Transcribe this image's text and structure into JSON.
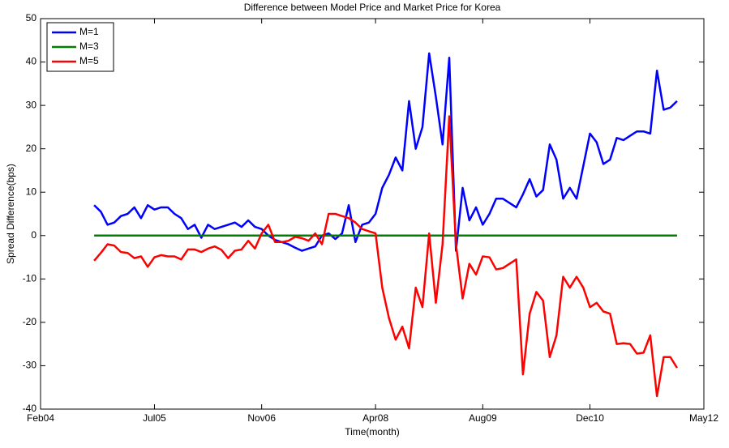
{
  "chart_data": {
    "type": "line",
    "title": "Difference between Model Price and Market Price for Korea",
    "x_label": "Time(month)",
    "y_label": "Spread Difference(bps)",
    "xlim": [
      0,
      99
    ],
    "xticks": [
      {
        "value": 0,
        "label": "Feb04"
      },
      {
        "value": 17,
        "label": "Jul05"
      },
      {
        "value": 33,
        "label": "Nov06"
      },
      {
        "value": 50,
        "label": "Apr08"
      },
      {
        "value": 66,
        "label": "Aug09"
      },
      {
        "value": 82,
        "label": "Dec10"
      },
      {
        "value": 99,
        "label": "May12"
      }
    ],
    "ylim": [
      -40,
      50
    ],
    "yticks": [
      -40,
      -30,
      -20,
      -10,
      0,
      10,
      20,
      30,
      40,
      50
    ],
    "legend": "upper left",
    "x": [
      8,
      9,
      10,
      11,
      12,
      13,
      14,
      15,
      16,
      17,
      18,
      19,
      20,
      21,
      22,
      23,
      24,
      25,
      26,
      27,
      28,
      29,
      30,
      31,
      32,
      33,
      34,
      35,
      36,
      37,
      38,
      39,
      40,
      41,
      42,
      43,
      44,
      45,
      46,
      47,
      48,
      49,
      50,
      51,
      52,
      53,
      54,
      55,
      56,
      57,
      58,
      59,
      60,
      61,
      62,
      63,
      64,
      65,
      66,
      67,
      68,
      69,
      70,
      71,
      72,
      73,
      74,
      75,
      76,
      77,
      78,
      79,
      80,
      81,
      82,
      83,
      84,
      85,
      86,
      87,
      88,
      89,
      90,
      91,
      92,
      93,
      94,
      95
    ],
    "series": [
      {
        "name": "M=1",
        "color": "#0000ff",
        "values": [
          7,
          5.5,
          2.5,
          3,
          4.5,
          5,
          6.5,
          4,
          7,
          6,
          6.5,
          6.5,
          5,
          4,
          1.5,
          2.5,
          -0.5,
          2.5,
          1.5,
          2,
          2.5,
          3,
          2,
          3.5,
          2,
          1.5,
          0,
          -1,
          -1.5,
          -2,
          -2.8,
          -3.5,
          -3,
          -2.5,
          0,
          0.5,
          -0.8,
          0.5,
          7,
          -1.5,
          2.5,
          3,
          5,
          11,
          14,
          18,
          15,
          31,
          20,
          25,
          42,
          32,
          21,
          41,
          -3.5,
          11,
          3.5,
          6.5,
          2.5,
          5,
          8.5,
          8.5,
          7.5,
          6.5,
          9.5,
          13,
          9,
          10.5,
          21,
          17.5,
          8.5,
          11,
          8.5,
          16,
          23.5,
          21.5,
          16.5,
          17.5,
          22.5,
          22,
          23,
          24,
          24,
          23.5,
          38,
          29,
          29.5,
          31
        ]
      },
      {
        "name": "M=3",
        "color": "#008000",
        "values": [
          0,
          0,
          0,
          0,
          0,
          0,
          0,
          0,
          0,
          0,
          0,
          0,
          0,
          0,
          0,
          0,
          0,
          0,
          0,
          0,
          0,
          0,
          0,
          0,
          0,
          0,
          0,
          0,
          0,
          0,
          0,
          0,
          0,
          0,
          0,
          0,
          0,
          0,
          0,
          0,
          0,
          0,
          0,
          0,
          0,
          0,
          0,
          0,
          0,
          0,
          0,
          0,
          0,
          0,
          0,
          0,
          0,
          0,
          0,
          0,
          0,
          0,
          0,
          0,
          0,
          0,
          0,
          0,
          0,
          0,
          0,
          0,
          0,
          0,
          0,
          0,
          0,
          0,
          0,
          0,
          0,
          0,
          0,
          0,
          0,
          0,
          0,
          0
        ]
      },
      {
        "name": "M=5",
        "color": "#ff0000",
        "values": [
          -5.8,
          -4,
          -2,
          -2.3,
          -3.8,
          -4,
          -5.2,
          -4.8,
          -7.2,
          -5,
          -4.5,
          -4.8,
          -4.8,
          -5.5,
          -3.2,
          -3.2,
          -3.8,
          -3,
          -2.5,
          -3.3,
          -5.2,
          -3.5,
          -3.2,
          -1.2,
          -3,
          0.5,
          2.5,
          -1.5,
          -1.5,
          -1.2,
          -0.3,
          -0.6,
          -1.2,
          0.5,
          -2,
          5,
          5,
          4.5,
          4,
          3,
          1.5,
          1,
          0.5,
          -12,
          -19,
          -24,
          -21,
          -26,
          -12,
          -16.5,
          0.5,
          -15.5,
          -2,
          27.5,
          -2,
          -14.5,
          -6.5,
          -9,
          -4.8,
          -5,
          -7.8,
          -7.5,
          -6.5,
          -5.5,
          -32,
          -18,
          -13,
          -15,
          -28,
          -23,
          -9.5,
          -12,
          -9.5,
          -12,
          -16.5,
          -15.5,
          -17.5,
          -18,
          -25,
          -24.8,
          -25,
          -27.2,
          -27,
          -23,
          -37,
          -28,
          -28,
          -30.5
        ]
      }
    ]
  }
}
